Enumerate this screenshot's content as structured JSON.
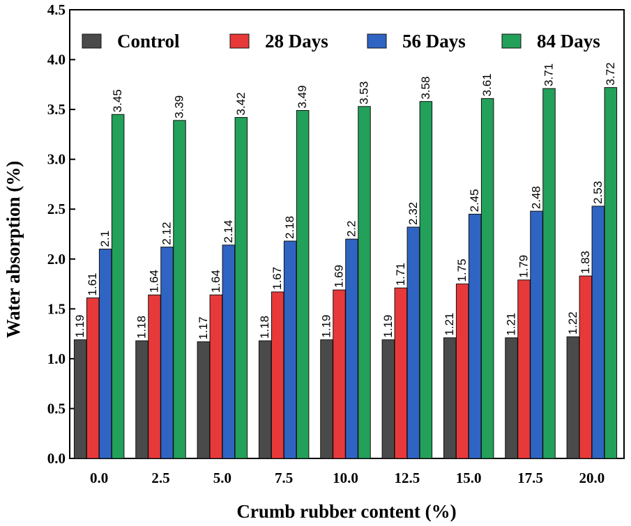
{
  "chart_data": {
    "type": "bar",
    "title": "",
    "xlabel": "Crumb rubber content (%)",
    "ylabel": "Water absorption (%)",
    "ylim": [
      0.0,
      4.5
    ],
    "yticks": [
      "0.0",
      "0.5",
      "1.0",
      "1.5",
      "2.0",
      "2.5",
      "3.0",
      "3.5",
      "4.0",
      "4.5"
    ],
    "categories": [
      "0.0",
      "2.5",
      "5.0",
      "7.5",
      "10.0",
      "12.5",
      "15.0",
      "17.5",
      "20.0"
    ],
    "legend_position": "top",
    "series": [
      {
        "name": "Control",
        "color": "#4a4a4a",
        "values": [
          1.19,
          1.18,
          1.17,
          1.18,
          1.19,
          1.19,
          1.21,
          1.21,
          1.22
        ],
        "labels": [
          "1.19",
          "1.18",
          "1.17",
          "1.18",
          "1.19",
          "1.19",
          "1.21",
          "1.21",
          "1.22"
        ]
      },
      {
        "name": "28 Days",
        "color": "#e8393a",
        "values": [
          1.61,
          1.64,
          1.64,
          1.67,
          1.69,
          1.71,
          1.75,
          1.79,
          1.83
        ],
        "labels": [
          "1.61",
          "1.64",
          "1.64",
          "1.67",
          "1.69",
          "1.71",
          "1.75",
          "1.79",
          "1.83"
        ]
      },
      {
        "name": "56 Days",
        "color": "#2f64c2",
        "values": [
          2.1,
          2.12,
          2.14,
          2.18,
          2.2,
          2.32,
          2.45,
          2.48,
          2.53
        ],
        "labels": [
          "2.1",
          "2.12",
          "2.14",
          "2.18",
          "2.2",
          "2.32",
          "2.45",
          "2.48",
          "2.53"
        ]
      },
      {
        "name": "84 Days",
        "color": "#23a05a",
        "values": [
          3.45,
          3.39,
          3.42,
          3.49,
          3.53,
          3.58,
          3.61,
          3.71,
          3.72
        ],
        "labels": [
          "3.45",
          "3.39",
          "3.42",
          "3.49",
          "3.53",
          "3.58",
          "3.61",
          "3.71",
          "3.72"
        ]
      }
    ]
  }
}
